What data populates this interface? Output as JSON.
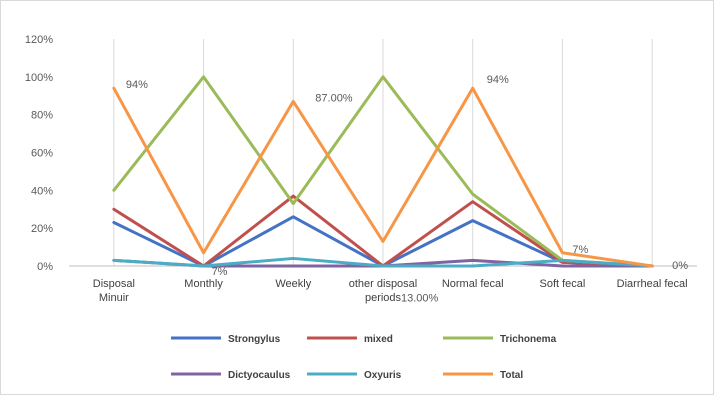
{
  "chart_data": {
    "type": "line",
    "categories": [
      "Disposal Minuir",
      "Monthly",
      "Weekly",
      "other disposal periods",
      "Normal fecal",
      "Soft fecal",
      "Diarrheal fecal"
    ],
    "category_lines": [
      [
        "Disposal",
        "Minuir"
      ],
      [
        "Monthly"
      ],
      [
        "Weekly"
      ],
      [
        "other disposal",
        "periods"
      ],
      [
        "Normal fecal"
      ],
      [
        "Soft fecal"
      ],
      [
        "Diarrheal fecal"
      ]
    ],
    "y_ticks": [
      "0%",
      "20%",
      "40%",
      "60%",
      "80%",
      "100%",
      "120%"
    ],
    "ylim": [
      0,
      120
    ],
    "grid": "vertical category lines",
    "legend_position": "bottom",
    "series": [
      {
        "name": "Strongylus",
        "color": "#4472c4",
        "values": [
          23,
          0,
          26,
          0,
          24,
          2,
          0
        ]
      },
      {
        "name": "mixed",
        "color": "#c0504d",
        "values": [
          30,
          0,
          37,
          0,
          34,
          2,
          0
        ]
      },
      {
        "name": "Trichonema",
        "color": "#9bbb59",
        "values": [
          40,
          100,
          33,
          100,
          38,
          3,
          0
        ]
      },
      {
        "name": "Dictyocaulus",
        "color": "#8064a2",
        "values": [
          3,
          0,
          0,
          0,
          3,
          0,
          0
        ]
      },
      {
        "name": "Oxyuris",
        "color": "#4bacc6",
        "values": [
          3,
          0,
          4,
          0,
          0,
          3,
          0
        ]
      },
      {
        "name": "Total",
        "color": "#f79646",
        "values": [
          94,
          7,
          87,
          13,
          94,
          7,
          0
        ]
      }
    ],
    "data_labels": [
      "94%",
      "7%",
      "87.00%",
      "13.00%",
      "94%",
      "7%",
      "0%"
    ]
  }
}
